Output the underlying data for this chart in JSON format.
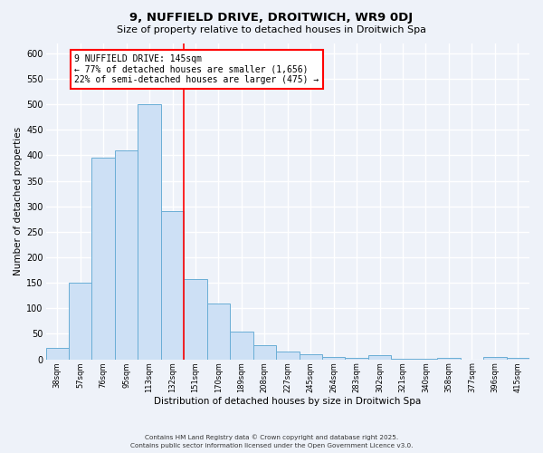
{
  "title1": "9, NUFFIELD DRIVE, DROITWICH, WR9 0DJ",
  "title2": "Size of property relative to detached houses in Droitwich Spa",
  "xlabel": "Distribution of detached houses by size in Droitwich Spa",
  "ylabel": "Number of detached properties",
  "bin_labels": [
    "38sqm",
    "57sqm",
    "76sqm",
    "95sqm",
    "113sqm",
    "132sqm",
    "151sqm",
    "170sqm",
    "189sqm",
    "208sqm",
    "227sqm",
    "245sqm",
    "264sqm",
    "283sqm",
    "302sqm",
    "321sqm",
    "340sqm",
    "358sqm",
    "377sqm",
    "396sqm",
    "415sqm"
  ],
  "bar_values": [
    22,
    150,
    395,
    410,
    500,
    290,
    158,
    110,
    55,
    28,
    15,
    10,
    5,
    3,
    8,
    1,
    1,
    2,
    0,
    5,
    2
  ],
  "bar_color": "#cde0f5",
  "bar_edge_color": "#6aaed6",
  "vline_x": 5.5,
  "vline_color": "red",
  "annotation_title": "9 NUFFIELD DRIVE: 145sqm",
  "annotation_line1": "← 77% of detached houses are smaller (1,656)",
  "annotation_line2": "22% of semi-detached houses are larger (475) →",
  "ylim": [
    0,
    620
  ],
  "yticks": [
    0,
    50,
    100,
    150,
    200,
    250,
    300,
    350,
    400,
    450,
    500,
    550,
    600
  ],
  "footer_line1": "Contains HM Land Registry data © Crown copyright and database right 2025.",
  "footer_line2": "Contains public sector information licensed under the Open Government Licence v3.0.",
  "bg_color": "#eef2f9"
}
